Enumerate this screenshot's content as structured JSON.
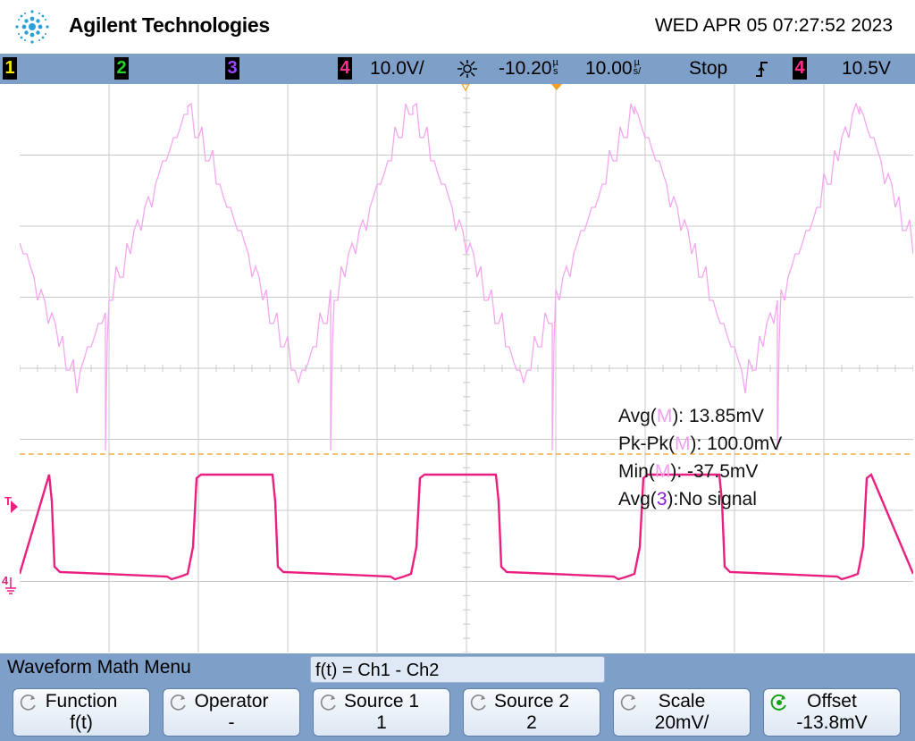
{
  "header": {
    "brand": "Agilent Technologies",
    "datetime": "WED APR 05 07:27:52 2023"
  },
  "status_bar": {
    "channels": [
      {
        "label": "1",
        "color": "#f5e400"
      },
      {
        "label": "2",
        "color": "#27d32a"
      },
      {
        "label": "3",
        "color": "#9a45ff"
      },
      {
        "label": "4",
        "color": "#ff2c8c"
      }
    ],
    "ch4_scale": "10.0V/",
    "delay": "-10.20",
    "delay_unit": "s",
    "delay_prefix": "µ",
    "timebase": "10.00",
    "timebase_unit": "s/",
    "timebase_prefix": "µ",
    "run_state": "Stop",
    "trigger_slope_icon": "rising-edge-icon",
    "trigger_channel": "4",
    "trigger_level": "10.5V"
  },
  "measurements": {
    "avg_label": "Avg(",
    "avg_src": "M",
    "avg_value": "): 13.85mV",
    "pkpk_label": "Pk-Pk(",
    "pkpk_src": "M",
    "pkpk_value": "): 100.0mV",
    "min_label": "Min(",
    "min_src": "M",
    "min_value": "): -37.5mV",
    "avg3_label": "Avg(",
    "avg3_src": "3",
    "avg3_value": "):No signal"
  },
  "markers": {
    "trigger_marker": "T",
    "ch4_ground_marker": "4"
  },
  "menu": {
    "title": "Waveform Math Menu",
    "formula": "f(t) = Ch1 - Ch2",
    "softkeys": [
      {
        "label": "Function",
        "value": "f(t)"
      },
      {
        "label": "Operator",
        "value": "-"
      },
      {
        "label": "Source 1",
        "value": "1"
      },
      {
        "label": "Source 2",
        "value": "2"
      },
      {
        "label": "Scale",
        "value": "20mV/"
      },
      {
        "label": "Offset",
        "value": "-13.8mV"
      }
    ]
  },
  "colors": {
    "math_trace": "#f6a6f1",
    "ch4_trace": "#ea1f80",
    "trigger_level_line": "#f0a020",
    "frame": "#7d9fc8"
  }
}
